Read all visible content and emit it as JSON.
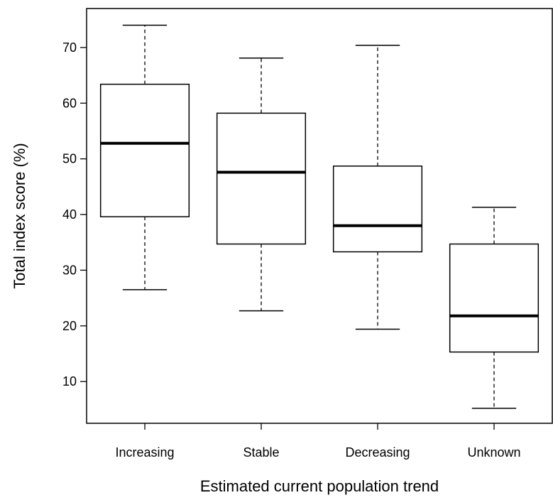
{
  "chart_data": {
    "type": "boxplot",
    "xlabel": "Estimated current population trend",
    "ylabel": "Total index score (%)",
    "ylim": [
      2.5,
      77
    ],
    "yticks": [
      10,
      20,
      30,
      40,
      50,
      60,
      70
    ],
    "grid": false,
    "categories": [
      "Increasing",
      "Stable",
      "Decreasing",
      "Unknown"
    ],
    "boxes": [
      {
        "category": "Increasing",
        "whisker_low": 26.5,
        "q1": 39.6,
        "median": 52.8,
        "q3": 63.4,
        "whisker_high": 74.0
      },
      {
        "category": "Stable",
        "whisker_low": 22.7,
        "q1": 34.7,
        "median": 47.6,
        "q3": 58.2,
        "whisker_high": 68.1
      },
      {
        "category": "Decreasing",
        "whisker_low": 19.4,
        "q1": 33.3,
        "median": 38.0,
        "q3": 48.7,
        "whisker_high": 70.4
      },
      {
        "category": "Unknown",
        "whisker_low": 5.2,
        "q1": 15.3,
        "median": 21.8,
        "q3": 34.7,
        "whisker_high": 41.3
      }
    ]
  }
}
